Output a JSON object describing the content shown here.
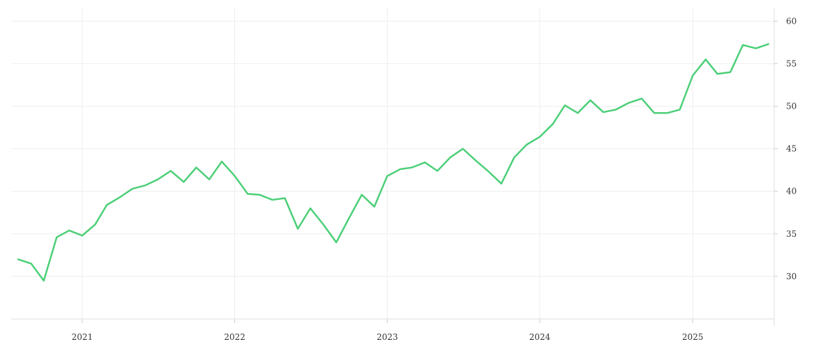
{
  "chart_data": {
    "type": "line",
    "title": "",
    "xlabel": "",
    "ylabel": "",
    "x_ticks": [
      "2021",
      "2022",
      "2023",
      "2024",
      "2025"
    ],
    "y_ticks": [
      30,
      35,
      40,
      45,
      50,
      55,
      60
    ],
    "ylim": [
      25,
      61.5
    ],
    "xlim": [
      "2020-07-15",
      "2025-07-15"
    ],
    "y_axis_position": "right",
    "grid": true,
    "legend": "none",
    "series": [
      {
        "color": "#4ccf78",
        "points": [
          [
            "2020-08-01",
            32.0
          ],
          [
            "2020-09-01",
            31.5
          ],
          [
            "2020-10-01",
            29.5
          ],
          [
            "2020-11-01",
            34.6
          ],
          [
            "2020-12-01",
            35.4
          ],
          [
            "2021-01-01",
            34.8
          ],
          [
            "2021-02-01",
            36.1
          ],
          [
            "2021-03-01",
            38.4
          ],
          [
            "2021-04-01",
            39.3
          ],
          [
            "2021-05-01",
            40.3
          ],
          [
            "2021-06-01",
            40.7
          ],
          [
            "2021-07-01",
            41.4
          ],
          [
            "2021-08-01",
            42.4
          ],
          [
            "2021-09-01",
            41.1
          ],
          [
            "2021-10-01",
            42.8
          ],
          [
            "2021-11-01",
            41.4
          ],
          [
            "2021-12-01",
            43.5
          ],
          [
            "2022-01-01",
            41.8
          ],
          [
            "2022-02-01",
            39.7
          ],
          [
            "2022-03-01",
            39.6
          ],
          [
            "2022-04-01",
            39.0
          ],
          [
            "2022-05-01",
            39.2
          ],
          [
            "2022-06-01",
            35.6
          ],
          [
            "2022-07-01",
            38.0
          ],
          [
            "2022-08-01",
            36.1
          ],
          [
            "2022-09-01",
            34.0
          ],
          [
            "2022-10-01",
            36.8
          ],
          [
            "2022-11-01",
            39.6
          ],
          [
            "2022-12-01",
            38.2
          ],
          [
            "2023-01-01",
            41.8
          ],
          [
            "2023-02-01",
            42.6
          ],
          [
            "2023-03-01",
            42.8
          ],
          [
            "2023-04-01",
            43.4
          ],
          [
            "2023-05-01",
            42.4
          ],
          [
            "2023-06-01",
            44.0
          ],
          [
            "2023-07-01",
            45.0
          ],
          [
            "2023-08-01",
            43.6
          ],
          [
            "2023-09-01",
            42.3
          ],
          [
            "2023-10-01",
            40.9
          ],
          [
            "2023-11-01",
            44.0
          ],
          [
            "2023-12-01",
            45.5
          ],
          [
            "2024-01-01",
            46.4
          ],
          [
            "2024-02-01",
            47.9
          ],
          [
            "2024-03-01",
            50.1
          ],
          [
            "2024-04-01",
            49.2
          ],
          [
            "2024-05-01",
            50.7
          ],
          [
            "2024-06-01",
            49.3
          ],
          [
            "2024-07-01",
            49.6
          ],
          [
            "2024-08-01",
            50.4
          ],
          [
            "2024-09-01",
            50.9
          ],
          [
            "2024-10-01",
            49.2
          ],
          [
            "2024-11-01",
            49.2
          ],
          [
            "2024-12-01",
            49.6
          ],
          [
            "2025-01-01",
            53.6
          ],
          [
            "2025-02-01",
            55.5
          ],
          [
            "2025-03-01",
            53.8
          ],
          [
            "2025-04-01",
            54.0
          ],
          [
            "2025-05-01",
            57.2
          ],
          [
            "2025-06-01",
            56.8
          ],
          [
            "2025-07-01",
            57.3
          ]
        ]
      }
    ]
  }
}
